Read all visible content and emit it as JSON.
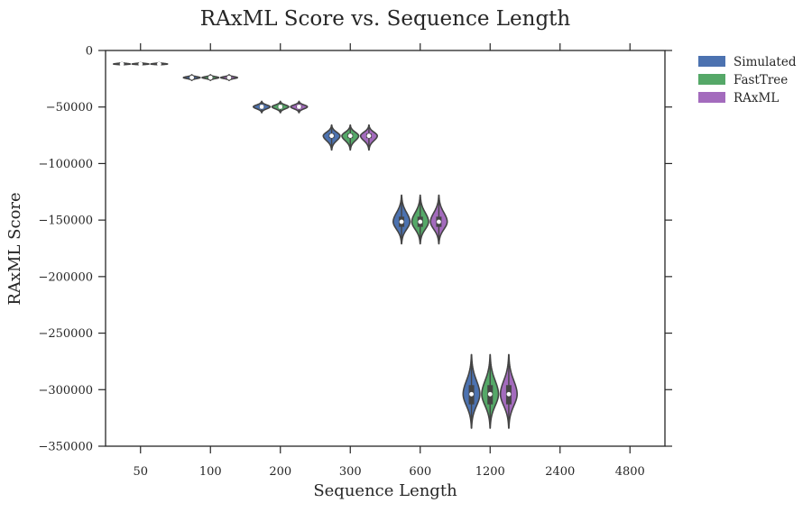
{
  "chart_data": {
    "type": "violin",
    "title": "RAxML Score vs. Sequence Length",
    "xlabel": "Sequence Length",
    "ylabel": "RAxML Score",
    "categories": [
      "50",
      "100",
      "200",
      "300",
      "600",
      "1200",
      "2400",
      "4800"
    ],
    "ylim": [
      -350000,
      0
    ],
    "yticks": [
      0,
      -50000,
      -100000,
      -150000,
      -200000,
      -250000,
      -300000,
      -350000
    ],
    "ytick_labels": [
      "0",
      "−50000",
      "−100000",
      "−150000",
      "−200000",
      "−250000",
      "−300000",
      "−350000"
    ],
    "grid": false,
    "legend_position": "outside-top-right",
    "series": [
      {
        "name": "Simulated",
        "color": "#4c72b0",
        "violins": [
          {
            "category": "50",
            "median": -12000,
            "q1": -12300,
            "q3": -11700,
            "min": -13000,
            "max": -10500
          },
          {
            "category": "100",
            "median": -24000,
            "q1": -24500,
            "q3": -23500,
            "min": -26500,
            "max": -21500
          },
          {
            "category": "200",
            "median": -49800,
            "q1": -50800,
            "q3": -48800,
            "min": -55000,
            "max": -45000
          },
          {
            "category": "300",
            "median": -75500,
            "q1": -77500,
            "q3": -73500,
            "min": -88000,
            "max": -66000
          },
          {
            "category": "600",
            "median": -151500,
            "q1": -156000,
            "q3": -147000,
            "min": -171000,
            "max": -128000
          },
          {
            "category": "1200",
            "median": -304000,
            "q1": -313000,
            "q3": -296000,
            "min": -334000,
            "max": -269000
          }
        ]
      },
      {
        "name": "FastTree",
        "color": "#55a868",
        "violins": [
          {
            "category": "50",
            "median": -12000,
            "q1": -12300,
            "q3": -11700,
            "min": -13000,
            "max": -10500
          },
          {
            "category": "100",
            "median": -24000,
            "q1": -24500,
            "q3": -23500,
            "min": -26500,
            "max": -21500
          },
          {
            "category": "200",
            "median": -49800,
            "q1": -50800,
            "q3": -48800,
            "min": -55000,
            "max": -45000
          },
          {
            "category": "300",
            "median": -75500,
            "q1": -77500,
            "q3": -73500,
            "min": -88000,
            "max": -66000
          },
          {
            "category": "600",
            "median": -151500,
            "q1": -156000,
            "q3": -147000,
            "min": -171000,
            "max": -128000
          },
          {
            "category": "1200",
            "median": -304000,
            "q1": -313000,
            "q3": -296000,
            "min": -334000,
            "max": -269000
          }
        ]
      },
      {
        "name": "RAxML",
        "color": "#a36bbd",
        "violins": [
          {
            "category": "50",
            "median": -12000,
            "q1": -12300,
            "q3": -11700,
            "min": -13000,
            "max": -10500
          },
          {
            "category": "100",
            "median": -24000,
            "q1": -24500,
            "q3": -23500,
            "min": -26500,
            "max": -21500
          },
          {
            "category": "200",
            "median": -49800,
            "q1": -50800,
            "q3": -48800,
            "min": -55000,
            "max": -45000
          },
          {
            "category": "300",
            "median": -75500,
            "q1": -77500,
            "q3": -73500,
            "min": -88000,
            "max": -66000
          },
          {
            "category": "600",
            "median": -151500,
            "q1": -156000,
            "q3": -147000,
            "min": -171000,
            "max": -128000
          },
          {
            "category": "1200",
            "median": -304000,
            "q1": -313000,
            "q3": -296000,
            "min": -334000,
            "max": -269000
          }
        ]
      }
    ]
  },
  "colors": {
    "outline": "#444444",
    "axis": "#262626",
    "background": "#ffffff"
  }
}
